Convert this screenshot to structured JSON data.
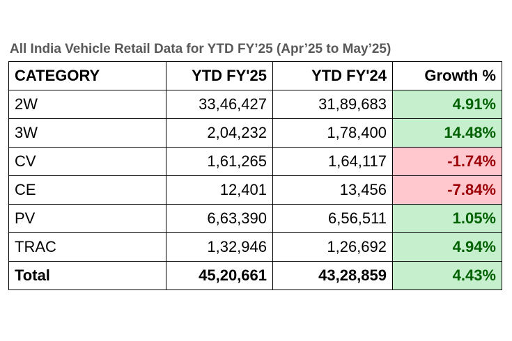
{
  "title": "All India Vehicle Retail Data for YTD FY’25 (Apr’25 to May’25)",
  "table": {
    "headers": [
      "CATEGORY",
      "YTD FY'25",
      "YTD FY'24",
      "Growth %"
    ],
    "rows": [
      {
        "category": "2W",
        "fy25": "33,46,427",
        "fy24": "31,89,683",
        "growth": "4.91%",
        "trend": "positive"
      },
      {
        "category": "3W",
        "fy25": "2,04,232",
        "fy24": "1,78,400",
        "growth": "14.48%",
        "trend": "positive"
      },
      {
        "category": "CV",
        "fy25": "1,61,265",
        "fy24": "1,64,117",
        "growth": "-1.74%",
        "trend": "negative"
      },
      {
        "category": "CE",
        "fy25": "12,401",
        "fy24": "13,456",
        "growth": "-7.84%",
        "trend": "negative"
      },
      {
        "category": "PV",
        "fy25": "6,63,390",
        "fy24": "6,56,511",
        "growth": "1.05%",
        "trend": "positive"
      },
      {
        "category": "TRAC",
        "fy25": "1,32,946",
        "fy24": "1,26,692",
        "growth": "4.94%",
        "trend": "positive"
      }
    ],
    "total": {
      "category": "Total",
      "fy25": "45,20,661",
      "fy24": "43,28,859",
      "growth": "4.43%",
      "trend": "positive"
    }
  },
  "colors": {
    "positive_fill": "#c6efce",
    "positive_text": "#006100",
    "negative_fill": "#ffc7ce",
    "negative_text": "#9c0006",
    "title_text": "#595959"
  }
}
